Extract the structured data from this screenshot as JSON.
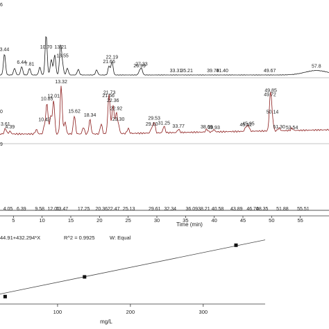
{
  "chart_data": [
    {
      "type": "line",
      "panel": "chromatogram-top",
      "xlim": [
        0,
        60
      ],
      "color": "#1a1a1a",
      "edge_labels": [
        "6",
        "3.44"
      ],
      "peaks": [
        {
          "x": 2.0,
          "h": 0.55
        },
        {
          "x": 3.44,
          "h": 0.38
        },
        {
          "x": 5.2,
          "h": 0.12
        },
        {
          "x": 6.44,
          "h": 0.15
        },
        {
          "x": 7.81,
          "h": 0.12
        },
        {
          "x": 9.6,
          "h": 0.14
        },
        {
          "x": 10.7,
          "h": 0.72
        },
        {
          "x": 11.6,
          "h": 0.28
        },
        {
          "x": 12.2,
          "h": 0.36
        },
        {
          "x": 13.21,
          "h": 0.52
        },
        {
          "x": 13.55,
          "h": 0.18
        },
        {
          "x": 14.4,
          "h": 0.12
        },
        {
          "x": 16.3,
          "h": 0.1
        },
        {
          "x": 19.5,
          "h": 0.09
        },
        {
          "x": 21.66,
          "h": 0.16
        },
        {
          "x": 22.19,
          "h": 0.24
        },
        {
          "x": 26.99,
          "h": 0.07
        },
        {
          "x": 27.33,
          "h": 0.11
        },
        {
          "x": 57.8,
          "h": 0.08,
          "w": 2.0
        }
      ],
      "labels": [
        {
          "x": 3.44,
          "text": "3.44"
        },
        {
          "x": 6.44,
          "text": "6.44"
        },
        {
          "x": 7.81,
          "text": "7.81"
        },
        {
          "x": 10.7,
          "text": "10.70"
        },
        {
          "x": 13.21,
          "text": "13.21"
        },
        {
          "x": 13.55,
          "text": "13.55"
        },
        {
          "x": 21.66,
          "text": "21.66"
        },
        {
          "x": 22.19,
          "text": "22.19"
        },
        {
          "x": 26.99,
          "text": "26.99"
        },
        {
          "x": 27.33,
          "text": "27.33"
        },
        {
          "x": 33.31,
          "text": "33.31"
        },
        {
          "x": 35.21,
          "text": "35.21"
        },
        {
          "x": 39.79,
          "text": "39.79"
        },
        {
          "x": 41.4,
          "text": "41.40"
        },
        {
          "x": 49.67,
          "text": "49.67"
        },
        {
          "x": 57.8,
          "text": "57.8"
        }
      ]
    },
    {
      "type": "line",
      "panel": "chromatogram-middle",
      "xlim": [
        0,
        60
      ],
      "color": "#8b1a1a",
      "edge_labels": [
        "0",
        "9"
      ],
      "peaks": [
        {
          "x": 3.61,
          "h": 0.1
        },
        {
          "x": 4.39,
          "h": 0.05
        },
        {
          "x": 9.0,
          "h": 0.08
        },
        {
          "x": 10.42,
          "h": 0.15
        },
        {
          "x": 10.85,
          "h": 0.55
        },
        {
          "x": 11.5,
          "h": 0.32
        },
        {
          "x": 12.01,
          "h": 0.6
        },
        {
          "x": 13.32,
          "h": 0.86
        },
        {
          "x": 14.0,
          "h": 0.22
        },
        {
          "x": 15.62,
          "h": 0.33
        },
        {
          "x": 17.2,
          "h": 0.12
        },
        {
          "x": 18.34,
          "h": 0.26
        },
        {
          "x": 20.3,
          "h": 0.18
        },
        {
          "x": 21.56,
          "h": 0.32
        },
        {
          "x": 21.73,
          "h": 0.46
        },
        {
          "x": 22.36,
          "h": 0.52
        },
        {
          "x": 22.92,
          "h": 0.36
        },
        {
          "x": 23.3,
          "h": 0.15
        },
        {
          "x": 25.0,
          "h": 0.09
        },
        {
          "x": 29.1,
          "h": 0.09
        },
        {
          "x": 29.53,
          "h": 0.2
        },
        {
          "x": 31.25,
          "h": 0.12
        },
        {
          "x": 33.77,
          "h": 0.06
        },
        {
          "x": 38.69,
          "h": 0.05
        },
        {
          "x": 39.93,
          "h": 0.04
        },
        {
          "x": 45.52,
          "h": 0.08
        },
        {
          "x": 45.95,
          "h": 0.1
        },
        {
          "x": 49.72,
          "h": 0.28
        },
        {
          "x": 49.85,
          "h": 0.44
        },
        {
          "x": 50.14,
          "h": 0.18
        },
        {
          "x": 51.3,
          "h": 0.05
        },
        {
          "x": 53.54,
          "h": 0.04
        }
      ],
      "labels": [
        {
          "x": 3.61,
          "text": "3.61"
        },
        {
          "x": 4.39,
          "text": "4.39"
        },
        {
          "x": 10.42,
          "text": "10.42"
        },
        {
          "x": 10.85,
          "text": "10.85"
        },
        {
          "x": 12.01,
          "text": "12.01"
        },
        {
          "x": 13.32,
          "text": "13.32"
        },
        {
          "x": 15.62,
          "text": "15.62"
        },
        {
          "x": 18.34,
          "text": "18.34"
        },
        {
          "x": 21.56,
          "text": "21.56"
        },
        {
          "x": 21.73,
          "text": "21.73"
        },
        {
          "x": 22.36,
          "text": "22.36"
        },
        {
          "x": 22.92,
          "text": "22.92"
        },
        {
          "x": 23.3,
          "text": "23.30"
        },
        {
          "x": 29.1,
          "text": "29.10"
        },
        {
          "x": 29.53,
          "text": "29.53"
        },
        {
          "x": 31.25,
          "text": "31.25"
        },
        {
          "x": 33.77,
          "text": "33.77"
        },
        {
          "x": 38.69,
          "text": "38.69"
        },
        {
          "x": 39.93,
          "text": "39.93"
        },
        {
          "x": 45.52,
          "text": "45.52"
        },
        {
          "x": 45.95,
          "text": "45.95"
        },
        {
          "x": 49.72,
          "text": "49.72"
        },
        {
          "x": 49.85,
          "text": "49.85"
        },
        {
          "x": 50.14,
          "text": "50.14"
        },
        {
          "x": 51.3,
          "text": "51.30"
        },
        {
          "x": 53.54,
          "text": "53.54"
        }
      ]
    },
    {
      "type": "line",
      "panel": "chromatogram-bottom",
      "xlim": [
        0,
        60
      ],
      "xlabel": "Time (min)",
      "xticks": [
        5,
        10,
        15,
        20,
        25,
        30,
        35,
        40,
        45,
        50,
        55
      ],
      "color": "#1a1a1a",
      "labels": [
        {
          "x": 4.05,
          "text": "4.05"
        },
        {
          "x": 6.39,
          "text": "6.39"
        },
        {
          "x": 9.58,
          "text": "9.58"
        },
        {
          "x": 12.01,
          "text": "12.01"
        },
        {
          "x": 13.47,
          "text": "13.47"
        },
        {
          "x": 17.25,
          "text": "17.25"
        },
        {
          "x": 20.36,
          "text": "20.36"
        },
        {
          "x": 22.47,
          "text": "22.47"
        },
        {
          "x": 25.13,
          "text": "25.13"
        },
        {
          "x": 29.61,
          "text": "29.61"
        },
        {
          "x": 32.34,
          "text": "32.34"
        },
        {
          "x": 36.09,
          "text": "36.09"
        },
        {
          "x": 38.21,
          "text": "38.21"
        },
        {
          "x": 40.58,
          "text": "40.58"
        },
        {
          "x": 43.89,
          "text": "43.89"
        },
        {
          "x": 46.7,
          "text": "46.70"
        },
        {
          "x": 48.35,
          "text": "48.35"
        },
        {
          "x": 51.88,
          "text": "51.88"
        },
        {
          "x": 55.51,
          "text": "55.51"
        }
      ]
    },
    {
      "type": "scatter",
      "panel": "calibration",
      "xlabel": "mg/L",
      "xlim": [
        0,
        385
      ],
      "xticks": [
        100,
        200,
        300
      ],
      "equation": "44.91+432.294*X",
      "r2": "R^2 = 0.9925",
      "weighting": "W: Equal",
      "fit": {
        "intercept": 44.91,
        "slope": 432.294
      },
      "points": [
        {
          "x": 28,
          "y": 1700
        },
        {
          "x": 137,
          "y": 59000
        },
        {
          "x": 345,
          "y": 151000
        }
      ],
      "ylim": [
        -20000,
        190000
      ]
    }
  ]
}
